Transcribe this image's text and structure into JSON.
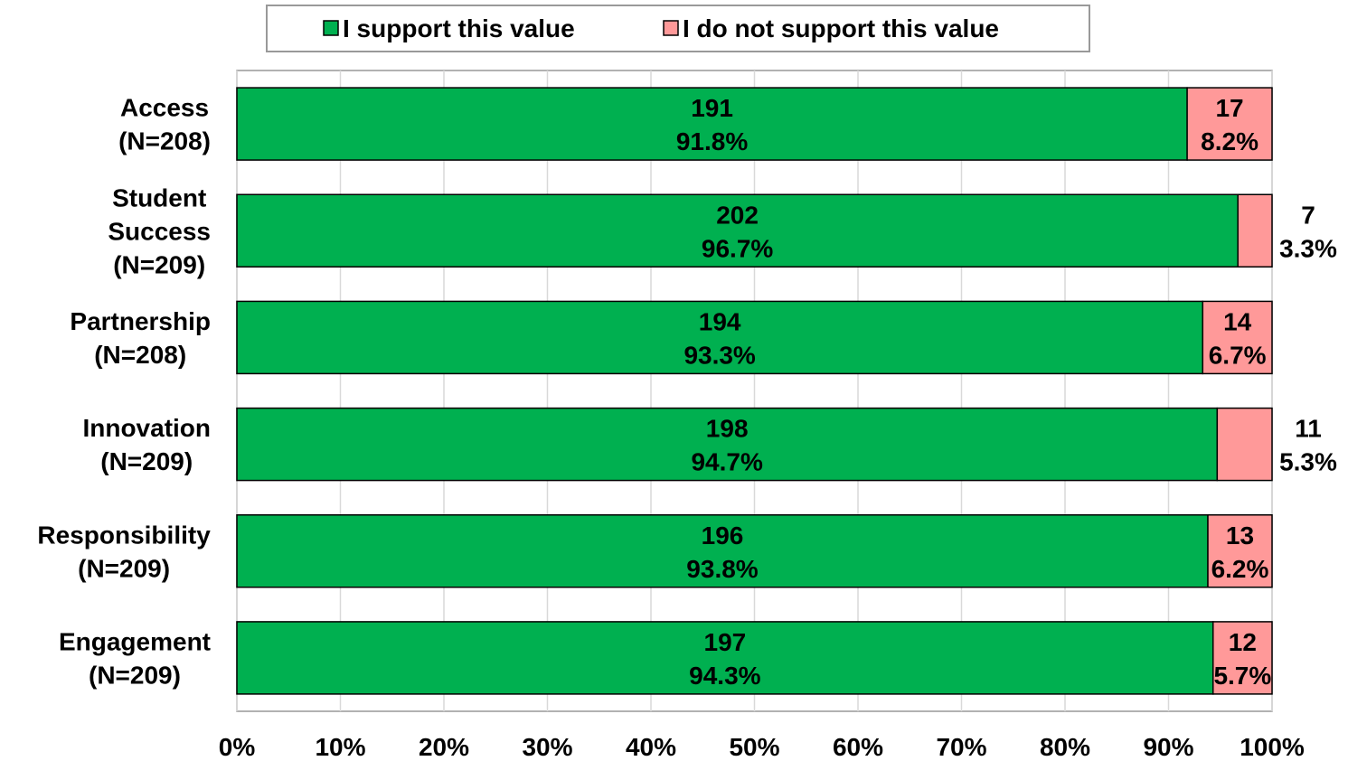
{
  "chart_data": {
    "type": "stacked_barh",
    "categories": [
      [
        "Access",
        "(N=208)"
      ],
      [
        "Student",
        "Success",
        "(N=209)"
      ],
      [
        "Partnership",
        "(N=208)"
      ],
      [
        "Innovation",
        "(N=209)"
      ],
      [
        "Responsibility",
        "(N=209)"
      ],
      [
        "Engagement",
        "(N=209)"
      ]
    ],
    "series": [
      {
        "name": "I support this value",
        "color": "#00b050",
        "values": [
          91.8,
          96.7,
          93.3,
          94.7,
          93.8,
          94.3
        ],
        "value_labels": [
          "91.8%",
          "96.7%",
          "93.3%",
          "94.7%",
          "93.8%",
          "94.3%"
        ],
        "counts": [
          191,
          202,
          194,
          198,
          196,
          197
        ]
      },
      {
        "name": "I do not support this value",
        "color": "#ff9999",
        "values": [
          8.2,
          3.3,
          6.7,
          5.3,
          6.2,
          5.7
        ],
        "value_labels": [
          "8.2%",
          "3.3%",
          "6.7%",
          "5.3%",
          "6.2%",
          "5.7%"
        ],
        "counts": [
          17,
          7,
          14,
          11,
          13,
          12
        ]
      }
    ],
    "xlim": [
      0,
      100
    ],
    "xticks": [
      {
        "value": 0,
        "label": "0%"
      },
      {
        "value": 10,
        "label": "10%"
      },
      {
        "value": 20,
        "label": "20%"
      },
      {
        "value": 30,
        "label": "30%"
      },
      {
        "value": 40,
        "label": "40%"
      },
      {
        "value": 50,
        "label": "50%"
      },
      {
        "value": 60,
        "label": "60%"
      },
      {
        "value": 70,
        "label": "70%"
      },
      {
        "value": 80,
        "label": "80%"
      },
      {
        "value": 90,
        "label": "90%"
      },
      {
        "value": 100,
        "label": "100%"
      }
    ],
    "grid": true,
    "legend": "top"
  }
}
